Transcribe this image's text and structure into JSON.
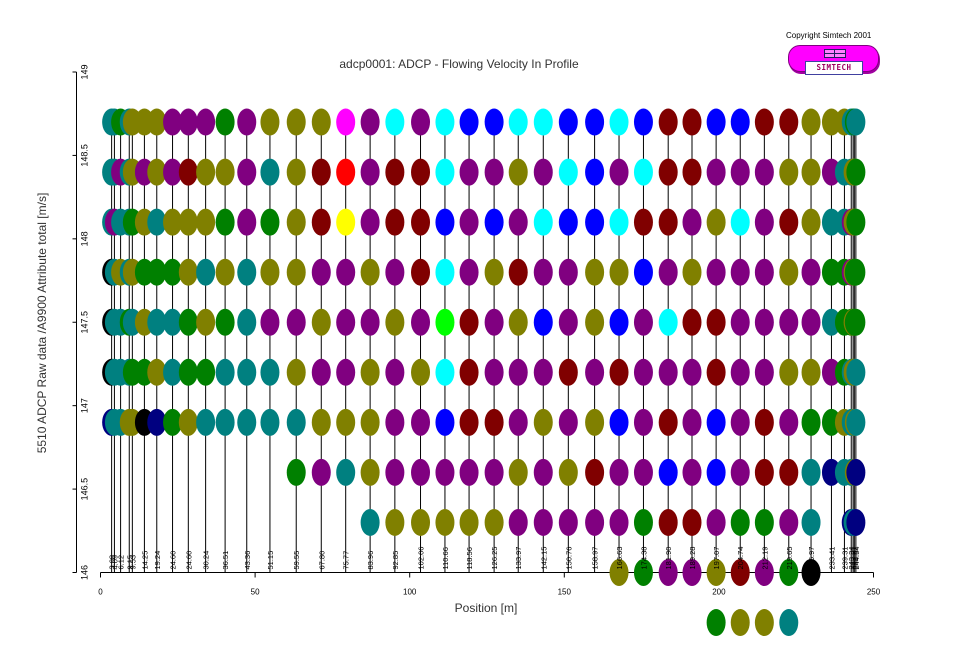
{
  "copyright": "Copyright Simtech 2001",
  "logo": {
    "text": "SIMTECH"
  },
  "colors": {
    "magenta": "#ff00ff",
    "navy": "#000080",
    "teal": "#008080",
    "green": "#008000",
    "olive": "#808000",
    "purple": "#800080",
    "maroon": "#800000",
    "blue": "#0000ff",
    "cyan": "#00ffff",
    "black": "#000000",
    "red": "#ff0000",
    "yellow": "#ffff00",
    "lime": "#00ff00"
  },
  "chart_data": {
    "type": "scatter",
    "title": "adcp0001: ADCP - Flowing Velocity In Profile",
    "xlabel": "Position [m]",
    "ylabel": "5510 ADCP Raw data /A9900 Attribute total [m/s]",
    "xlim": [
      0,
      250
    ],
    "ylim": [
      146,
      149
    ],
    "xticks": [
      "0",
      "50",
      "100",
      "150",
      "200",
      "250"
    ],
    "yticks": [
      "146",
      "146.5",
      "147",
      "147.5",
      "148",
      "148.5",
      "149"
    ],
    "grid": false,
    "legend": "none",
    "depth_levels": [
      148.7,
      148.4,
      148.1,
      147.8,
      147.5,
      147.2,
      146.9,
      146.6,
      146.3,
      146.0,
      145.7
    ],
    "profiles": [
      {
        "label": "3.08",
        "x": 3.6,
        "cells": [
          "teal",
          "teal",
          "teal",
          "black",
          "black",
          "black",
          "navy"
        ]
      },
      {
        "label": "4.09",
        "x": 4.5,
        "cells": [
          "teal",
          "teal",
          "purple",
          "teal",
          "teal",
          "teal",
          "teal"
        ]
      },
      {
        "label": "6.12",
        "x": 6.5,
        "cells": [
          "green",
          "purple",
          "teal",
          "olive",
          "teal",
          "teal",
          "teal"
        ]
      },
      {
        "label": "9.15",
        "x": 9.3,
        "cells": [
          "teal",
          "teal",
          "teal",
          "teal",
          "green",
          "teal",
          "olive"
        ]
      },
      {
        "label": "9.53",
        "x": 10.3,
        "cells": [
          "olive",
          "olive",
          "green",
          "olive",
          "teal",
          "green",
          "olive"
        ]
      },
      {
        "label": "14.25",
        "x": 14.2,
        "cells": [
          "olive",
          "purple",
          "olive",
          "green",
          "olive",
          "green",
          "black"
        ]
      },
      {
        "label": "19.24",
        "x": 18.2,
        "cells": [
          "olive",
          "olive",
          "teal",
          "green",
          "teal",
          "olive",
          "navy"
        ]
      },
      {
        "label": "24.60",
        "x": 23.3,
        "cells": [
          "purple",
          "purple",
          "olive",
          "green",
          "teal",
          "teal",
          "green"
        ]
      },
      {
        "label": "24.60",
        "x": 28.4,
        "cells": [
          "purple",
          "maroon",
          "olive",
          "olive",
          "green",
          "green",
          "olive"
        ]
      },
      {
        "label": "30.24",
        "x": 34.0,
        "cells": [
          "purple",
          "olive",
          "olive",
          "teal",
          "olive",
          "green",
          "teal"
        ]
      },
      {
        "label": "36.51",
        "x": 40.3,
        "cells": [
          "green",
          "olive",
          "green",
          "olive",
          "green",
          "teal",
          "teal"
        ]
      },
      {
        "label": "43.36",
        "x": 47.3,
        "cells": [
          "purple",
          "purple",
          "purple",
          "teal",
          "teal",
          "teal",
          "teal"
        ]
      },
      {
        "label": "51.15",
        "x": 54.8,
        "cells": [
          "olive",
          "teal",
          "green",
          "olive",
          "purple",
          "teal",
          "teal"
        ]
      },
      {
        "label": "59.55",
        "x": 63.3,
        "cells": [
          "olive",
          "olive",
          "olive",
          "olive",
          "purple",
          "olive",
          "teal",
          "green"
        ]
      },
      {
        "label": "67.80",
        "x": 71.4,
        "cells": [
          "olive",
          "maroon",
          "maroon",
          "purple",
          "olive",
          "purple",
          "olive",
          "purple"
        ]
      },
      {
        "label": "75.77",
        "x": 79.3,
        "cells": [
          "magenta",
          "red",
          "yellow",
          "purple",
          "purple",
          "purple",
          "olive",
          "teal"
        ]
      },
      {
        "label": "83.96",
        "x": 87.2,
        "cells": [
          "purple",
          "purple",
          "purple",
          "olive",
          "purple",
          "olive",
          "olive",
          "olive",
          "teal"
        ]
      },
      {
        "label": "92.85",
        "x": 95.2,
        "cells": [
          "cyan",
          "maroon",
          "maroon",
          "purple",
          "olive",
          "purple",
          "purple",
          "purple",
          "olive"
        ]
      },
      {
        "label": "102.06",
        "x": 103.5,
        "cells": [
          "purple",
          "maroon",
          "maroon",
          "maroon",
          "purple",
          "olive",
          "purple",
          "purple",
          "olive"
        ]
      },
      {
        "label": "110.66",
        "x": 111.4,
        "cells": [
          "cyan",
          "cyan",
          "blue",
          "cyan",
          "lime",
          "cyan",
          "blue",
          "purple",
          "olive"
        ]
      },
      {
        "label": "118.56",
        "x": 119.2,
        "cells": [
          "blue",
          "purple",
          "purple",
          "purple",
          "maroon",
          "maroon",
          "maroon",
          "purple",
          "olive"
        ]
      },
      {
        "label": "126.25",
        "x": 127.3,
        "cells": [
          "blue",
          "purple",
          "blue",
          "olive",
          "purple",
          "purple",
          "maroon",
          "purple",
          "olive"
        ]
      },
      {
        "label": "133.97",
        "x": 135.1,
        "cells": [
          "cyan",
          "olive",
          "purple",
          "maroon",
          "olive",
          "purple",
          "purple",
          "olive",
          "purple"
        ]
      },
      {
        "label": "142.15",
        "x": 143.2,
        "cells": [
          "cyan",
          "purple",
          "cyan",
          "purple",
          "blue",
          "purple",
          "olive",
          "purple",
          "purple"
        ]
      },
      {
        "label": "150.76",
        "x": 151.3,
        "cells": [
          "blue",
          "cyan",
          "blue",
          "purple",
          "purple",
          "maroon",
          "purple",
          "olive",
          "purple"
        ]
      },
      {
        "label": "158.97",
        "x": 159.8,
        "cells": [
          "blue",
          "blue",
          "blue",
          "olive",
          "olive",
          "purple",
          "olive",
          "maroon",
          "purple"
        ]
      },
      {
        "label": "166.63",
        "x": 167.7,
        "cells": [
          "cyan",
          "purple",
          "cyan",
          "olive",
          "blue",
          "maroon",
          "blue",
          "purple",
          "purple",
          "olive"
        ]
      },
      {
        "label": "174.38",
        "x": 175.6,
        "cells": [
          "blue",
          "cyan",
          "maroon",
          "blue",
          "purple",
          "purple",
          "purple",
          "purple",
          "green",
          "green"
        ]
      },
      {
        "label": "181.90",
        "x": 183.6,
        "cells": [
          "maroon",
          "maroon",
          "maroon",
          "purple",
          "cyan",
          "purple",
          "maroon",
          "blue",
          "maroon",
          "purple"
        ]
      },
      {
        "label": "189.28",
        "x": 191.3,
        "cells": [
          "maroon",
          "maroon",
          "purple",
          "olive",
          "maroon",
          "purple",
          "purple",
          "purple",
          "maroon",
          "purple"
        ]
      },
      {
        "label": "197.07",
        "x": 199.1,
        "cells": [
          "blue",
          "purple",
          "olive",
          "purple",
          "maroon",
          "maroon",
          "blue",
          "blue",
          "purple",
          "olive",
          "green"
        ]
      },
      {
        "label": "204.74",
        "x": 206.9,
        "cells": [
          "blue",
          "purple",
          "cyan",
          "purple",
          "purple",
          "purple",
          "purple",
          "purple",
          "green",
          "maroon",
          "olive"
        ]
      },
      {
        "label": "212.19",
        "x": 214.7,
        "cells": [
          "maroon",
          "purple",
          "purple",
          "purple",
          "purple",
          "purple",
          "maroon",
          "maroon",
          "green",
          "purple",
          "olive"
        ]
      },
      {
        "label": "219.65",
        "x": 222.6,
        "cells": [
          "maroon",
          "olive",
          "maroon",
          "olive",
          "purple",
          "olive",
          "purple",
          "maroon",
          "purple",
          "green",
          "teal"
        ]
      },
      {
        "label": "226.97",
        "x": 229.8,
        "cells": [
          "olive",
          "olive",
          "olive",
          "purple",
          "purple",
          "olive",
          "green",
          "teal",
          "teal",
          "black"
        ]
      },
      {
        "label": "233.41",
        "x": 236.4,
        "cells": [
          "olive",
          "purple",
          "teal",
          "green",
          "teal",
          "purple",
          "green",
          "navy"
        ]
      },
      {
        "label": "239.31",
        "x": 240.6,
        "cells": [
          "olive",
          "teal",
          "teal",
          "green",
          "green",
          "green",
          "olive",
          "teal"
        ]
      },
      {
        "label": "243.34",
        "x": 242.8,
        "cells": [
          "teal",
          "teal",
          "purple",
          "purple",
          "green",
          "teal",
          "teal",
          "teal",
          "navy"
        ]
      },
      {
        "label": "243.61",
        "x": 243.4,
        "cells": [
          "teal",
          "olive",
          "olive",
          "olive",
          "olive",
          "olive",
          "teal",
          "teal",
          "teal"
        ]
      },
      {
        "label": "243.87",
        "x": 243.8,
        "cells": [
          "green",
          "olive",
          "olive",
          "green",
          "green",
          "olive",
          "olive",
          "olive",
          "teal"
        ]
      },
      {
        "label": "244.34",
        "x": 244.3,
        "cells": [
          "teal",
          "green",
          "green",
          "green",
          "green",
          "teal",
          "teal",
          "navy",
          "navy"
        ]
      }
    ]
  }
}
